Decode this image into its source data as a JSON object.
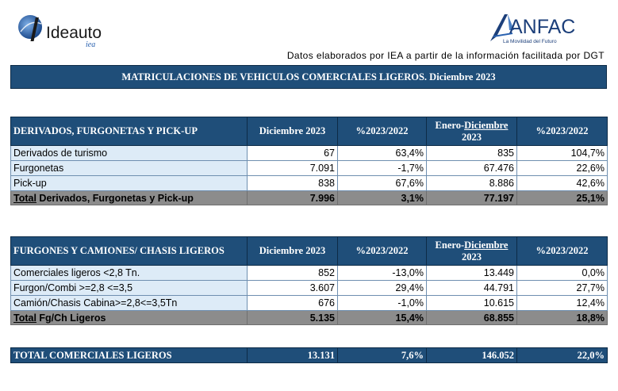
{
  "header": {
    "left_logo_text": "Ideauto",
    "left_logo_sub": "iea",
    "right_logo_text": "ANFAC",
    "right_logo_tagline": "La Movilidad del Futuro",
    "source_note": "Datos elaborados por IEA a partir de la información facilitada por DGT"
  },
  "title": "MATRICULACIONES DE VEHICULOS COMERCIALES LIGEROS. Diciembre 2023",
  "columns": {
    "month": "Diciembre 2023",
    "pct_month": "%2023/2022",
    "ytd_prefix": "Enero-",
    "ytd_month": "Diciembre",
    "ytd_year": "2023",
    "pct_ytd": "%2023/2022"
  },
  "section1": {
    "heading": "DERIVADOS, FURGONETAS Y PICK-UP",
    "rows": [
      {
        "label": "Derivados de turismo",
        "month": "67",
        "pct_month": "63,4%",
        "ytd": "835",
        "pct_ytd": "104,7%"
      },
      {
        "label": "Furgonetas",
        "month": "7.091",
        "pct_month": "-1,7%",
        "ytd": "67.476",
        "pct_ytd": "22,6%"
      },
      {
        "label": "Pick-up",
        "month": "838",
        "pct_month": "67,6%",
        "ytd": "8.886",
        "pct_ytd": "42,6%"
      }
    ],
    "total": {
      "label_prefix": "Total",
      "label_rest": " Derivados, Furgonetas y Pick-up",
      "month": "7.996",
      "pct_month": "3,1%",
      "ytd": "77.197",
      "pct_ytd": "25,1%"
    }
  },
  "section2": {
    "heading": "FURGONES Y CAMIONES/ CHASIS LIGEROS",
    "rows": [
      {
        "label": "Comerciales ligeros <2,8 Tn.",
        "month": "852",
        "pct_month": "-13,0%",
        "ytd": "13.449",
        "pct_ytd": "0,0%"
      },
      {
        "label": "Furgon/Combi >=2,8 <=3,5",
        "month": "3.607",
        "pct_month": "29,4%",
        "ytd": "44.791",
        "pct_ytd": "27,7%"
      },
      {
        "label": "Camión/Chasis Cabina>=2,8<=3,5Tn",
        "month": "676",
        "pct_month": "-1,0%",
        "ytd": "10.615",
        "pct_ytd": "12,4%"
      }
    ],
    "total": {
      "label_prefix": "Total",
      "label_rest": " Fg/Ch Ligeros",
      "month": "5.135",
      "pct_month": "15,4%",
      "ytd": "68.855",
      "pct_ytd": "18,8%"
    }
  },
  "grand_total": {
    "label": "TOTAL COMERCIALES LIGEROS",
    "month": "13.131",
    "pct_month": "7,6%",
    "ytd": "146.052",
    "pct_ytd": "22,0%"
  },
  "colors": {
    "header_blue": "#1f4e79",
    "label_blue": "#ddebf7",
    "total_grey": "#8c8c8c"
  }
}
